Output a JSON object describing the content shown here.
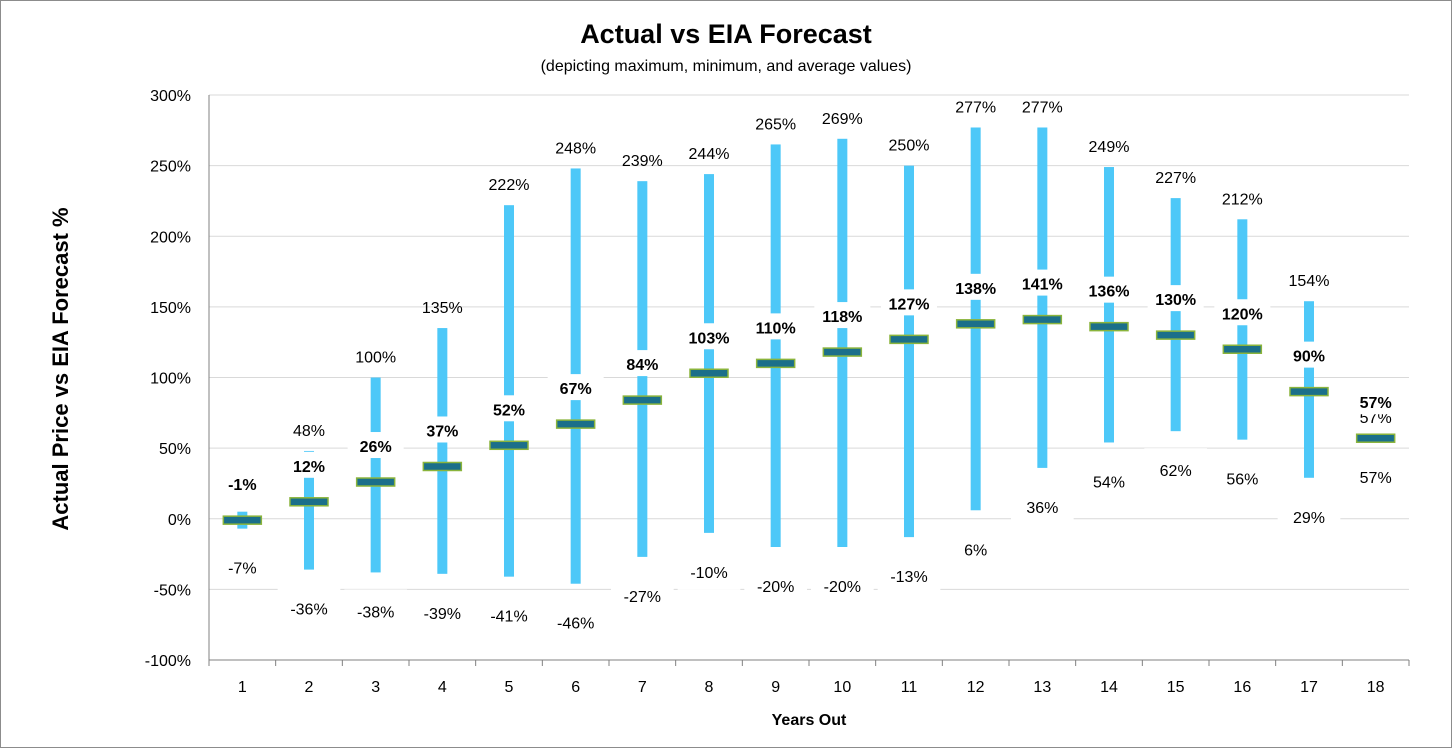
{
  "chart_data": {
    "type": "bar",
    "title": "Actual vs EIA Forecast",
    "subtitle": "(depicting maximum, minimum, and average values)",
    "xlabel": "Years Out",
    "ylabel": "Actual Price vs EIA Forecast %",
    "ylim": [
      -100,
      300
    ],
    "ytick_step": 50,
    "ytick_suffix": "%",
    "grid": true,
    "categories": [
      "1",
      "2",
      "3",
      "4",
      "5",
      "6",
      "7",
      "8",
      "9",
      "10",
      "11",
      "12",
      "13",
      "14",
      "15",
      "16",
      "17",
      "18"
    ],
    "series": [
      {
        "name": "maximum",
        "values": [
          5,
          48,
          100,
          135,
          222,
          248,
          239,
          244,
          265,
          269,
          250,
          277,
          277,
          249,
          227,
          212,
          154,
          57
        ]
      },
      {
        "name": "minimum",
        "values": [
          -7,
          -36,
          -38,
          -39,
          -41,
          -46,
          -27,
          -10,
          -20,
          -20,
          -13,
          6,
          36,
          54,
          62,
          56,
          29,
          57
        ]
      },
      {
        "name": "average",
        "values": [
          -1,
          12,
          26,
          37,
          52,
          67,
          84,
          103,
          110,
          118,
          127,
          138,
          141,
          136,
          130,
          120,
          90,
          57
        ]
      }
    ],
    "max_labels": [
      "",
      "48%",
      "100%",
      "135%",
      "222%",
      "248%",
      "239%",
      "244%",
      "265%",
      "269%",
      "250%",
      "277%",
      "277%",
      "249%",
      "227%",
      "212%",
      "154%",
      "57%"
    ],
    "min_labels": [
      "-7%",
      "-36%",
      "-38%",
      "-39%",
      "-41%",
      "-46%",
      "-27%",
      "-10%",
      "-20%",
      "-20%",
      "-13%",
      "6%",
      "36%",
      "54%",
      "62%",
      "56%",
      "29%",
      "57%"
    ],
    "avg_labels": [
      "-1%",
      "12%",
      "26%",
      "37%",
      "52%",
      "67%",
      "84%",
      "103%",
      "110%",
      "118%",
      "127%",
      "138%",
      "141%",
      "136%",
      "130%",
      "120%",
      "90%",
      "57%"
    ],
    "colors": {
      "range_bar": "#4dc8f8",
      "avg_marker_fill": "#1b6f8a",
      "avg_marker_edge": "#8ab43c",
      "grid": "#d9d9d9",
      "axis": "#808080"
    }
  }
}
